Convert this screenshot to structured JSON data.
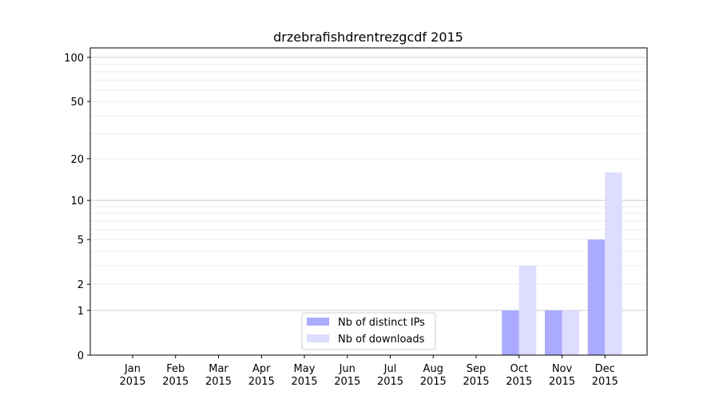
{
  "chart_data": {
    "type": "bar",
    "title": "drzebrafishdrentrezgcdf 2015",
    "xlabel": "",
    "ylabel": "",
    "yscale": "log10(y+1)",
    "ylim": [
      0,
      116
    ],
    "yticks": [
      0,
      1,
      2,
      5,
      10,
      20,
      50,
      100
    ],
    "ytick_labels": [
      "0",
      "1",
      "2",
      "5",
      "10",
      "20",
      "50",
      "100"
    ],
    "grid": true,
    "legend_placement": "lower-center",
    "categories": [
      "Jan\n2015",
      "Feb\n2015",
      "Mar\n2015",
      "Apr\n2015",
      "May\n2015",
      "Jun\n2015",
      "Jul\n2015",
      "Aug\n2015",
      "Sep\n2015",
      "Oct\n2015",
      "Nov\n2015",
      "Dec\n2015"
    ],
    "series": [
      {
        "name": "Nb of distinct IPs",
        "color": "#aaaaff",
        "values": [
          0,
          0,
          0,
          0,
          0,
          0,
          0,
          0,
          0,
          1,
          1,
          5
        ]
      },
      {
        "name": "Nb of downloads",
        "color": "#ddddff",
        "values": [
          0,
          0,
          0,
          0,
          0,
          0,
          0,
          0,
          0,
          3,
          1,
          16
        ]
      }
    ]
  }
}
